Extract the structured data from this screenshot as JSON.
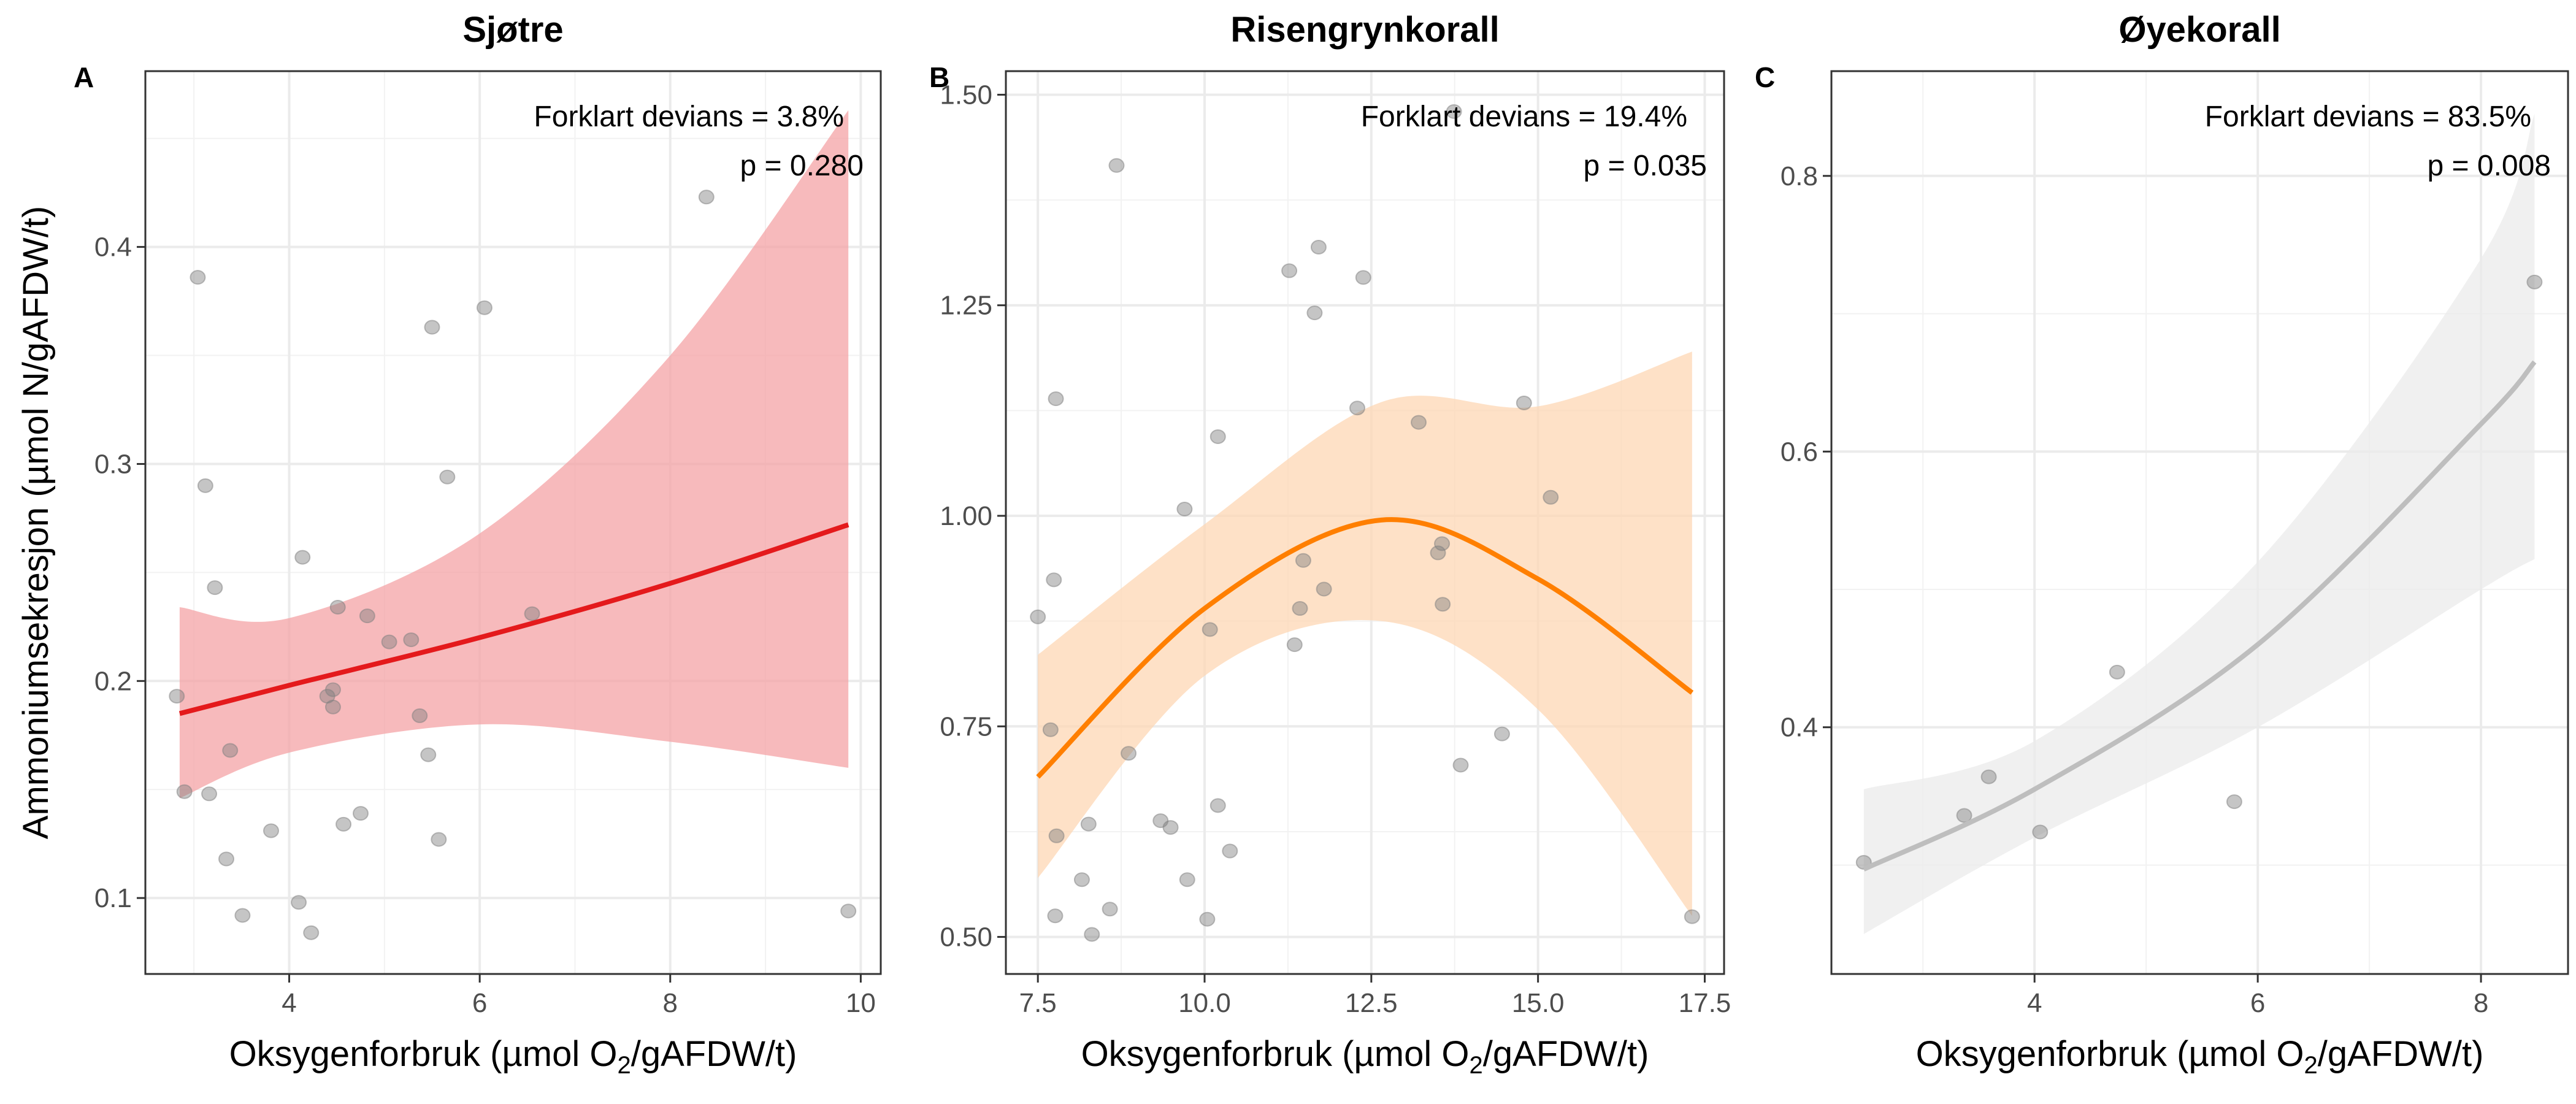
{
  "chart_data": [
    {
      "type": "scatter",
      "tag": "A",
      "title": "Sjøtre",
      "annotation": {
        "deviance": "Forklart devians = 3.8%",
        "p": "p = 0.280"
      },
      "xlabel": {
        "main": "Oksygenforbruk (µmol O",
        "sub": "2",
        "rest": "/gAFDW/t)"
      },
      "ylabel": "Ammoniumsekresjon (µmol N/gAFDW/t)",
      "xlim": [
        2.49,
        10.21
      ],
      "ylim": [
        0.065,
        0.481
      ],
      "xticks": [
        4,
        6,
        8,
        10
      ],
      "xtick_labels": [
        "4",
        "6",
        "8",
        "10"
      ],
      "yticks": [
        0.1,
        0.2,
        0.3,
        0.4
      ],
      "ytick_labels": [
        "0.1",
        "0.2",
        "0.3",
        "0.4"
      ],
      "xminor": [
        3,
        5,
        7,
        9
      ],
      "yminor": [
        0.15,
        0.25,
        0.35,
        0.45
      ],
      "grid": true,
      "line_color": "#E41A1C",
      "ribbon_color": "#F4A3A5",
      "points": [
        [
          3.04,
          0.386
        ],
        [
          3.12,
          0.29
        ],
        [
          3.22,
          0.243
        ],
        [
          2.82,
          0.193
        ],
        [
          2.9,
          0.149
        ],
        [
          3.16,
          0.148
        ],
        [
          3.38,
          0.168
        ],
        [
          3.34,
          0.118
        ],
        [
          3.51,
          0.092
        ],
        [
          3.81,
          0.131
        ],
        [
          4.14,
          0.257
        ],
        [
          4.1,
          0.098
        ],
        [
          4.23,
          0.084
        ],
        [
          4.51,
          0.234
        ],
        [
          4.82,
          0.23
        ],
        [
          4.4,
          0.193
        ],
        [
          4.46,
          0.196
        ],
        [
          4.46,
          0.188
        ],
        [
          4.57,
          0.134
        ],
        [
          4.75,
          0.139
        ],
        [
          5.05,
          0.218
        ],
        [
          5.28,
          0.219
        ],
        [
          5.37,
          0.184
        ],
        [
          5.46,
          0.166
        ],
        [
          5.5,
          0.363
        ],
        [
          5.57,
          0.127
        ],
        [
          5.66,
          0.294
        ],
        [
          6.05,
          0.372
        ],
        [
          6.55,
          0.231
        ],
        [
          8.38,
          0.423
        ],
        [
          9.87,
          0.094
        ]
      ],
      "fit": {
        "x": [
          2.85,
          4,
          6,
          8,
          9.87
        ],
        "y": [
          0.185,
          0.198,
          0.22,
          0.245,
          0.272
        ],
        "lower": [
          0.146,
          0.167,
          0.18,
          0.172,
          0.16
        ],
        "upper": [
          0.234,
          0.229,
          0.268,
          0.35,
          0.463
        ]
      }
    },
    {
      "type": "scatter",
      "tag": "B",
      "title": "Risengrynkorall",
      "annotation": {
        "deviance": "Forklart devians = 19.4%",
        "p": "p = 0.035"
      },
      "xlabel": {
        "main": "Oksygenforbruk (µmol O",
        "sub": "2",
        "rest": "/gAFDW/t)"
      },
      "ylabel": "",
      "xlim": [
        7.02,
        17.79
      ],
      "ylim": [
        0.456,
        1.528
      ],
      "xticks": [
        7.5,
        10,
        12.5,
        15,
        17.5
      ],
      "xtick_labels": [
        "7.5",
        "10.0",
        "12.5",
        "15.0",
        "17.5"
      ],
      "yticks": [
        0.5,
        0.75,
        1.0,
        1.25,
        1.5
      ],
      "ytick_labels": [
        "0.50",
        "0.75",
        "1.00",
        "1.25",
        "1.50"
      ],
      "xminor": [
        8.75,
        11.25,
        13.75,
        16.25
      ],
      "yminor": [
        0.625,
        0.875,
        1.125,
        1.375
      ],
      "grid": true,
      "line_color": "#FF7F00",
      "ribbon_color": "#FDD7B4",
      "points": [
        [
          8.68,
          1.416
        ],
        [
          7.77,
          1.139
        ],
        [
          7.74,
          0.924
        ],
        [
          7.5,
          0.88
        ],
        [
          7.69,
          0.746
        ],
        [
          8.86,
          0.718
        ],
        [
          7.78,
          0.62
        ],
        [
          8.26,
          0.634
        ],
        [
          8.16,
          0.568
        ],
        [
          7.76,
          0.525
        ],
        [
          8.58,
          0.533
        ],
        [
          8.31,
          0.503
        ],
        [
          9.34,
          0.638
        ],
        [
          9.49,
          0.63
        ],
        [
          9.74,
          0.568
        ],
        [
          9.7,
          1.008
        ],
        [
          10.2,
          1.094
        ],
        [
          10.08,
          0.865
        ],
        [
          10.2,
          0.656
        ],
        [
          10.38,
          0.602
        ],
        [
          10.04,
          0.521
        ],
        [
          11.27,
          1.291
        ],
        [
          11.71,
          1.319
        ],
        [
          11.65,
          1.241
        ],
        [
          12.38,
          1.283
        ],
        [
          12.29,
          1.128
        ],
        [
          11.48,
          0.947
        ],
        [
          11.79,
          0.913
        ],
        [
          11.43,
          0.89
        ],
        [
          11.35,
          0.847
        ],
        [
          13.21,
          1.111
        ],
        [
          13.56,
          0.967
        ],
        [
          13.5,
          0.956
        ],
        [
          13.57,
          0.895
        ],
        [
          14.79,
          1.134
        ],
        [
          15.19,
          1.022
        ],
        [
          14.46,
          0.741
        ],
        [
          13.84,
          0.704
        ],
        [
          17.31,
          0.524
        ],
        [
          13.74,
          1.48
        ]
      ],
      "fit": {
        "x": [
          7.5,
          10,
          12.65,
          15,
          17.31
        ],
        "y": [
          0.69,
          0.89,
          0.995,
          0.925,
          0.79
        ],
        "lower": [
          0.57,
          0.81,
          0.875,
          0.77,
          0.525
        ],
        "upper": [
          0.835,
          0.99,
          1.135,
          1.13,
          1.195
        ]
      }
    },
    {
      "type": "scatter",
      "tag": "C",
      "title": "Øyekorall",
      "annotation": {
        "deviance": "Forklart devians = 83.5%",
        "p": "p = 0.008"
      },
      "xlabel": {
        "main": "Oksygenforbruk (µmol O",
        "sub": "2",
        "rest": "/gAFDW/t)"
      },
      "ylabel": "",
      "xlim": [
        2.18,
        8.78
      ],
      "ylim": [
        0.221,
        0.876
      ],
      "xticks": [
        4,
        6,
        8
      ],
      "xtick_labels": [
        "4",
        "6",
        "8"
      ],
      "yticks": [
        0.4,
        0.6,
        0.8
      ],
      "ytick_labels": [
        "0.4",
        "0.6",
        "0.8"
      ],
      "xminor": [
        3,
        5,
        7
      ],
      "yminor": [
        0.3,
        0.5,
        0.7
      ],
      "grid": true,
      "line_color": "#BEBEBE",
      "ribbon_color": "#EBEBEB",
      "points": [
        [
          2.47,
          0.302
        ],
        [
          3.37,
          0.336
        ],
        [
          3.59,
          0.364
        ],
        [
          4.05,
          0.324
        ],
        [
          4.74,
          0.44
        ],
        [
          5.79,
          0.346
        ],
        [
          8.48,
          0.723
        ]
      ],
      "fit": {
        "x": [
          2.47,
          4,
          6,
          8,
          8.48
        ],
        "y": [
          0.297,
          0.355,
          0.46,
          0.62,
          0.665
        ],
        "lower": [
          0.25,
          0.32,
          0.4,
          0.5,
          0.522
        ],
        "upper": [
          0.355,
          0.39,
          0.52,
          0.74,
          0.845
        ]
      }
    }
  ]
}
